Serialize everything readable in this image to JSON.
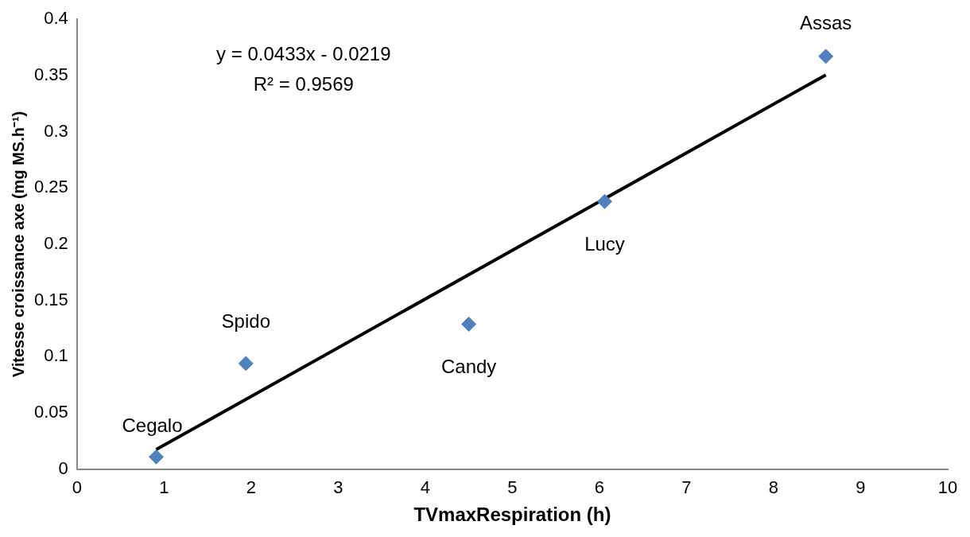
{
  "chart_data": {
    "type": "scatter",
    "xlabel": "TVmaxRespiration (h)",
    "ylabel": "Vitesse croissance axe (mg MS.h⁻¹)",
    "series": [
      {
        "type": "scatter",
        "x": [
          0.91,
          1.94,
          4.5,
          6.06,
          8.6
        ],
        "values": [
          0.011,
          0.094,
          0.129,
          0.238,
          0.367
        ],
        "color": "#4f81bd",
        "marker": "diamond"
      },
      {
        "type": "line",
        "x": [
          0.91,
          8.6
        ],
        "values": [
          0.0175,
          0.3505
        ],
        "color": "#000000",
        "marker": "none"
      }
    ],
    "annotations": [
      "y = 0.0433x - 0.0219",
      "R² = 0.9569",
      {
        "text": "Cegalo",
        "x": 0.91,
        "y": 0.011
      },
      {
        "text": "Spido",
        "x": 1.94,
        "y": 0.094
      },
      {
        "text": "Candy",
        "x": 4.5,
        "y": 0.129
      },
      {
        "text": "Lucy",
        "x": 6.06,
        "y": 0.238
      },
      {
        "text": "Assas",
        "x": 8.6,
        "y": 0.367
      }
    ],
    "xlim": [
      0,
      10
    ],
    "xticks": [
      0,
      1,
      2,
      3,
      4,
      5,
      6,
      7,
      8,
      9,
      10
    ],
    "ylim": [
      0,
      0.4
    ],
    "yticks": [
      0,
      0.05,
      0.1,
      0.15,
      0.2,
      0.25,
      0.3,
      0.35,
      0.4
    ],
    "grid": false,
    "legend": false
  }
}
